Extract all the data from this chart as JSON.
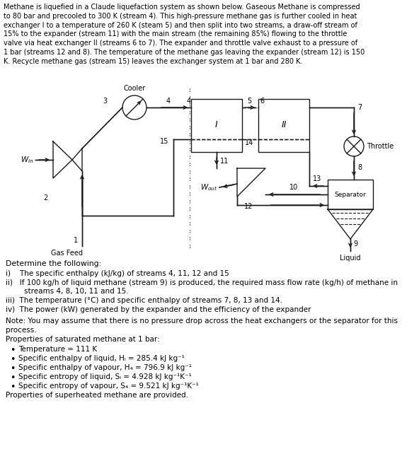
{
  "title_text": "Methane is liquefied in a Claude liquefaction system as shown below. Gaseous Methane is compressed\nto 80 bar and precooled to 300 K (stream 4). This high-pressure methane gas is further cooled in heat\nexchanger I to a temperature of 260 K (steam 5) and then split into two streams, a draw-off stream of\n15% to the expander (stream 11) with the main stream (the remaining 85%) flowing to the throttle\nvalve via heat exchanger II (streams 6 to 7). The expander and throttle valve exhaust to a pressure of\n1 bar (streams 12 and 8). The temperature of the methane gas leaving the expander (stream 12) is 150\nK. Recycle methane gas (stream 15) leaves the exchanger system at 1 bar and 280 K.",
  "determine_text": "Determine the following:",
  "item_i": "i)    The specific enthalpy (kJ/kg) of streams 4, 11, 12 and 15",
  "item_ii_a": "ii)   If 100 kg/h of liquid methane (stream 9) is produced, the required mass flow rate (kg/h) of methane in",
  "item_ii_b": "        streams 4, 8, 10, 11 and 15.",
  "item_iii": "iii)  The temperature (°C) and specific enthalpy of streams 7, 8, 13 and 14.",
  "item_iv": "iv)  The power (kW) generated by the expander and the efficiency of the expander",
  "note_text": "Note: You may assume that there is no pressure drop across the heat exchangers or the separator for this\nprocess.",
  "props_header": "Properties of saturated methane at 1 bar:",
  "bullet1": "Temperature = 111 K",
  "bullet2": "Specific enthalpy of liquid, Hₗ = 285.4 kJ kg⁻¹",
  "bullet3": "Specific enthalpy of vapour, H₄ = 796.9 kJ kg⁻¹",
  "bullet4": "Specific entropy of liquid, Sₗ = 4.928 kJ kg⁻¹K⁻¹",
  "bullet5": "Specific entropy of vapour, S₄ = 9.521 kJ kg⁻¹K⁻¹",
  "props_footer": "Properties of superheated methane are provided.",
  "bg_color": "#ffffff",
  "line_color": "#1a1a1a",
  "lw": 1.0
}
